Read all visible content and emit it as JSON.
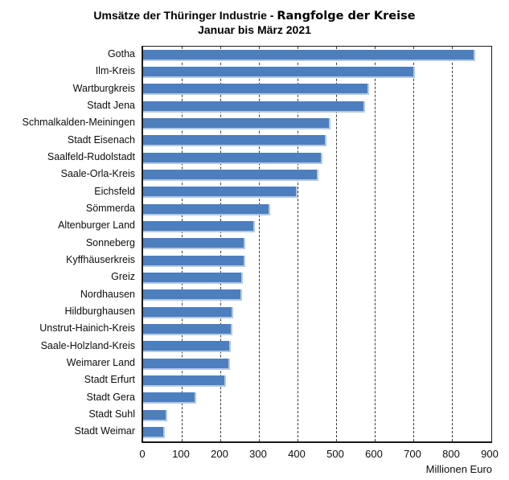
{
  "title": {
    "part1": "Umsätze der Thüringer Industrie - ",
    "part2": "Rangfolge der Kreise",
    "subtitle": "Januar bis März 2021"
  },
  "chart_data": {
    "type": "bar",
    "orientation": "horizontal",
    "title": "Umsätze der Thüringer Industrie - Rangfolge der Kreise",
    "subtitle": "Januar bis März 2021",
    "xlabel": "Millionen Euro",
    "xlim": [
      0,
      900
    ],
    "xticks": [
      0,
      100,
      200,
      300,
      400,
      500,
      600,
      700,
      800,
      900
    ],
    "grid": "vertical-dashed",
    "legend_position": "none",
    "bar_color": "#4d7ebe",
    "bar_highlight_color": "#b3c9e5",
    "categories": [
      "Gotha",
      "Ilm-Kreis",
      "Wartburgkreis",
      "Stadt Jena",
      "Schmalkalden-Meiningen",
      "Stadt Eisenach",
      "Saalfeld-Rudolstadt",
      "Saale-Orla-Kreis",
      "Eichsfeld",
      "Sömmerda",
      "Altenburger Land",
      "Sonneberg",
      "Kyffhäuserkreis",
      "Greiz",
      "Nordhausen",
      "Hildburghausen",
      "Unstrut-Hainich-Kreis",
      "Saale-Holzland-Kreis",
      "Weimarer Land",
      "Stadt Erfurt",
      "Stadt Gera",
      "Stadt Suhl",
      "Stadt Weimar"
    ],
    "values": [
      860,
      705,
      585,
      575,
      485,
      475,
      465,
      455,
      400,
      330,
      290,
      265,
      265,
      258,
      257,
      233,
      232,
      228,
      226,
      215,
      137,
      62,
      56
    ]
  }
}
